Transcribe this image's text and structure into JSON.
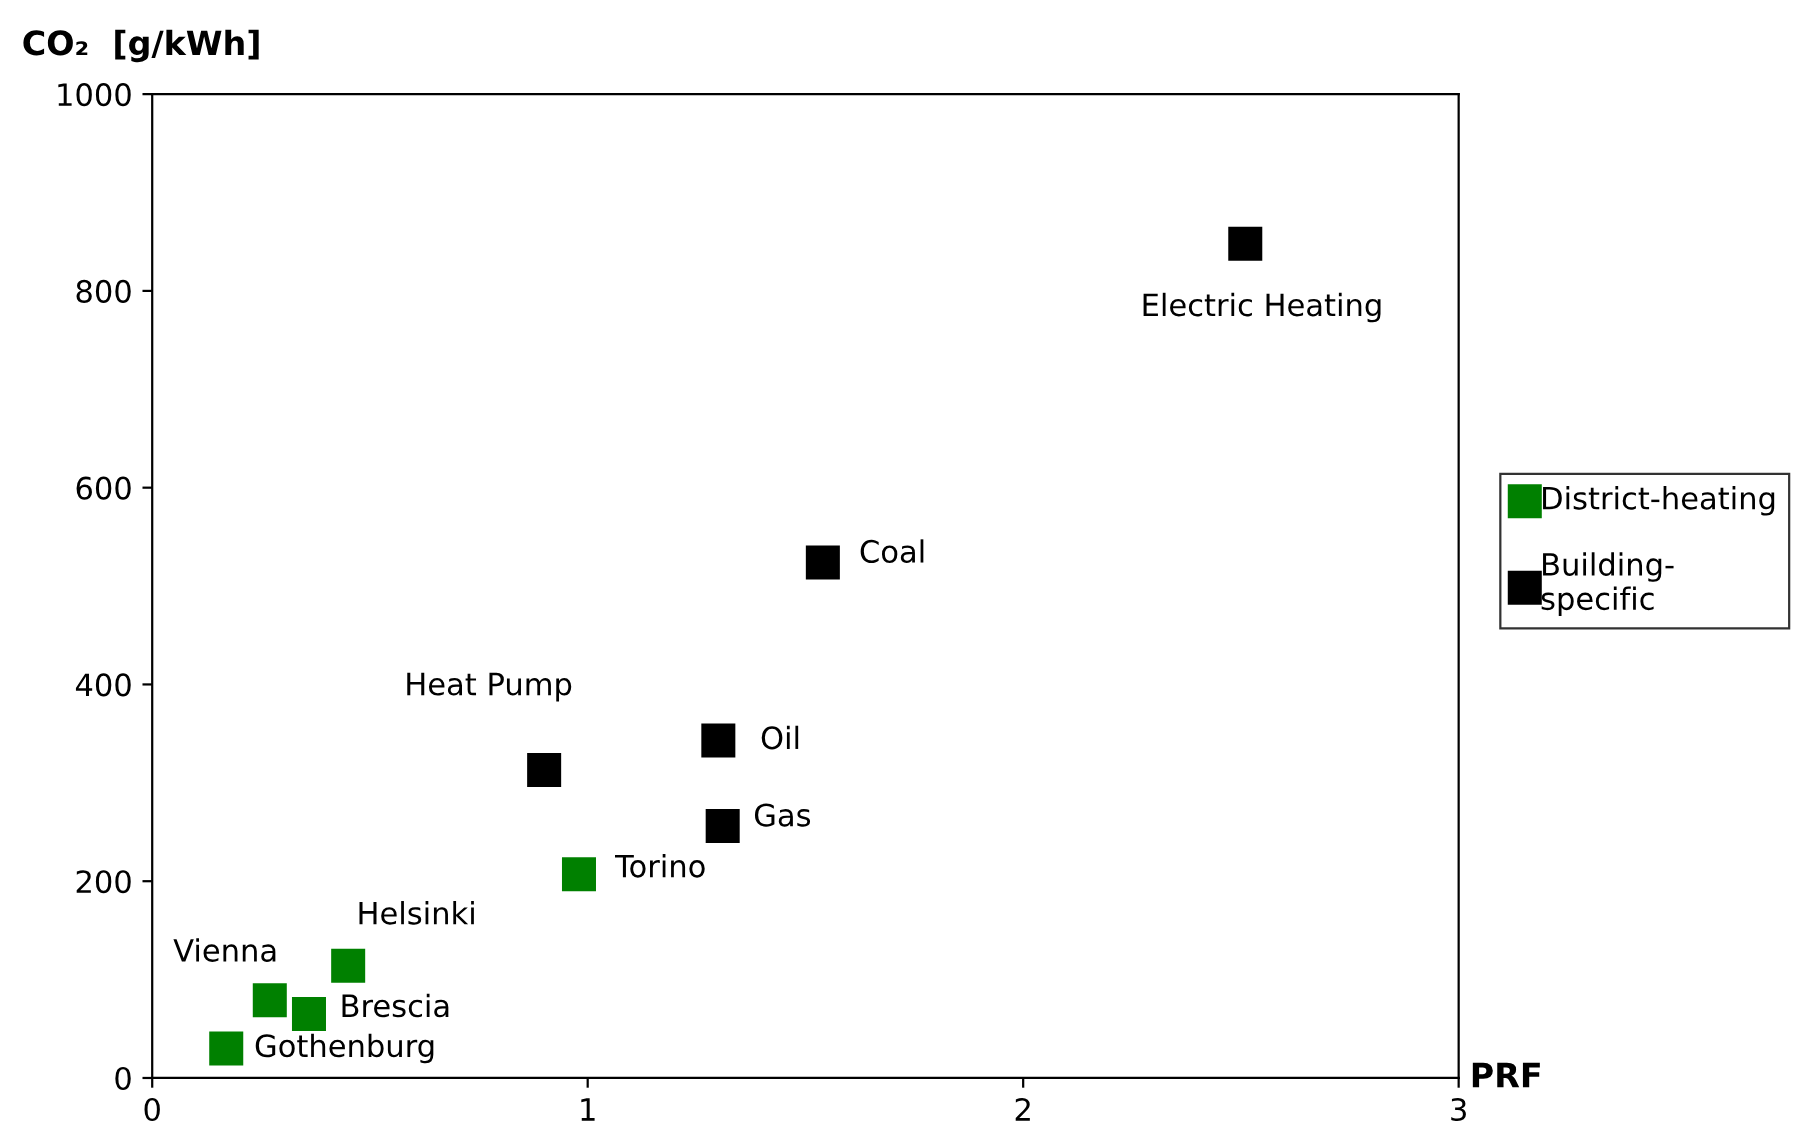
{
  "chart_data": {
    "type": "scatter",
    "xlabel": "PRF",
    "ylabel": "CO₂  [g/kWh]",
    "xlim": [
      0,
      3
    ],
    "ylim": [
      0,
      1000
    ],
    "xticks": [
      0,
      1,
      2,
      3
    ],
    "yticks": [
      0,
      200,
      400,
      600,
      800,
      1000
    ],
    "grid": false,
    "legend": "right",
    "marker": "square",
    "series": [
      {
        "name": "District-heating",
        "color": "#008000",
        "x": [
          0.98,
          0.45,
          0.27,
          0.36,
          0.17
        ],
        "values": [
          207,
          114,
          79,
          65,
          30
        ]
      },
      {
        "name": "Building-\nspecific",
        "color": "#000000",
        "x": [
          2.51,
          1.54,
          1.3,
          1.31,
          0.9
        ],
        "values": [
          848,
          524,
          343,
          256,
          313
        ]
      }
    ],
    "annotations": [
      {
        "text": "Electric Heating",
        "x": 2.51,
        "y": 848
      },
      {
        "text": "Coal",
        "x": 1.54,
        "y": 524
      },
      {
        "text": "Oil",
        "x": 1.3,
        "y": 343
      },
      {
        "text": "Gas",
        "x": 1.31,
        "y": 256
      },
      {
        "text": "Heat Pump",
        "x": 0.9,
        "y": 313
      },
      {
        "text": "Torino",
        "x": 0.98,
        "y": 207
      },
      {
        "text": "Helsinki",
        "x": 0.45,
        "y": 114
      },
      {
        "text": "Vienna",
        "x": 0.27,
        "y": 79
      },
      {
        "text": "Brescia",
        "x": 0.36,
        "y": 65
      },
      {
        "text": "Gothenburg",
        "x": 0.17,
        "y": 30
      }
    ]
  }
}
